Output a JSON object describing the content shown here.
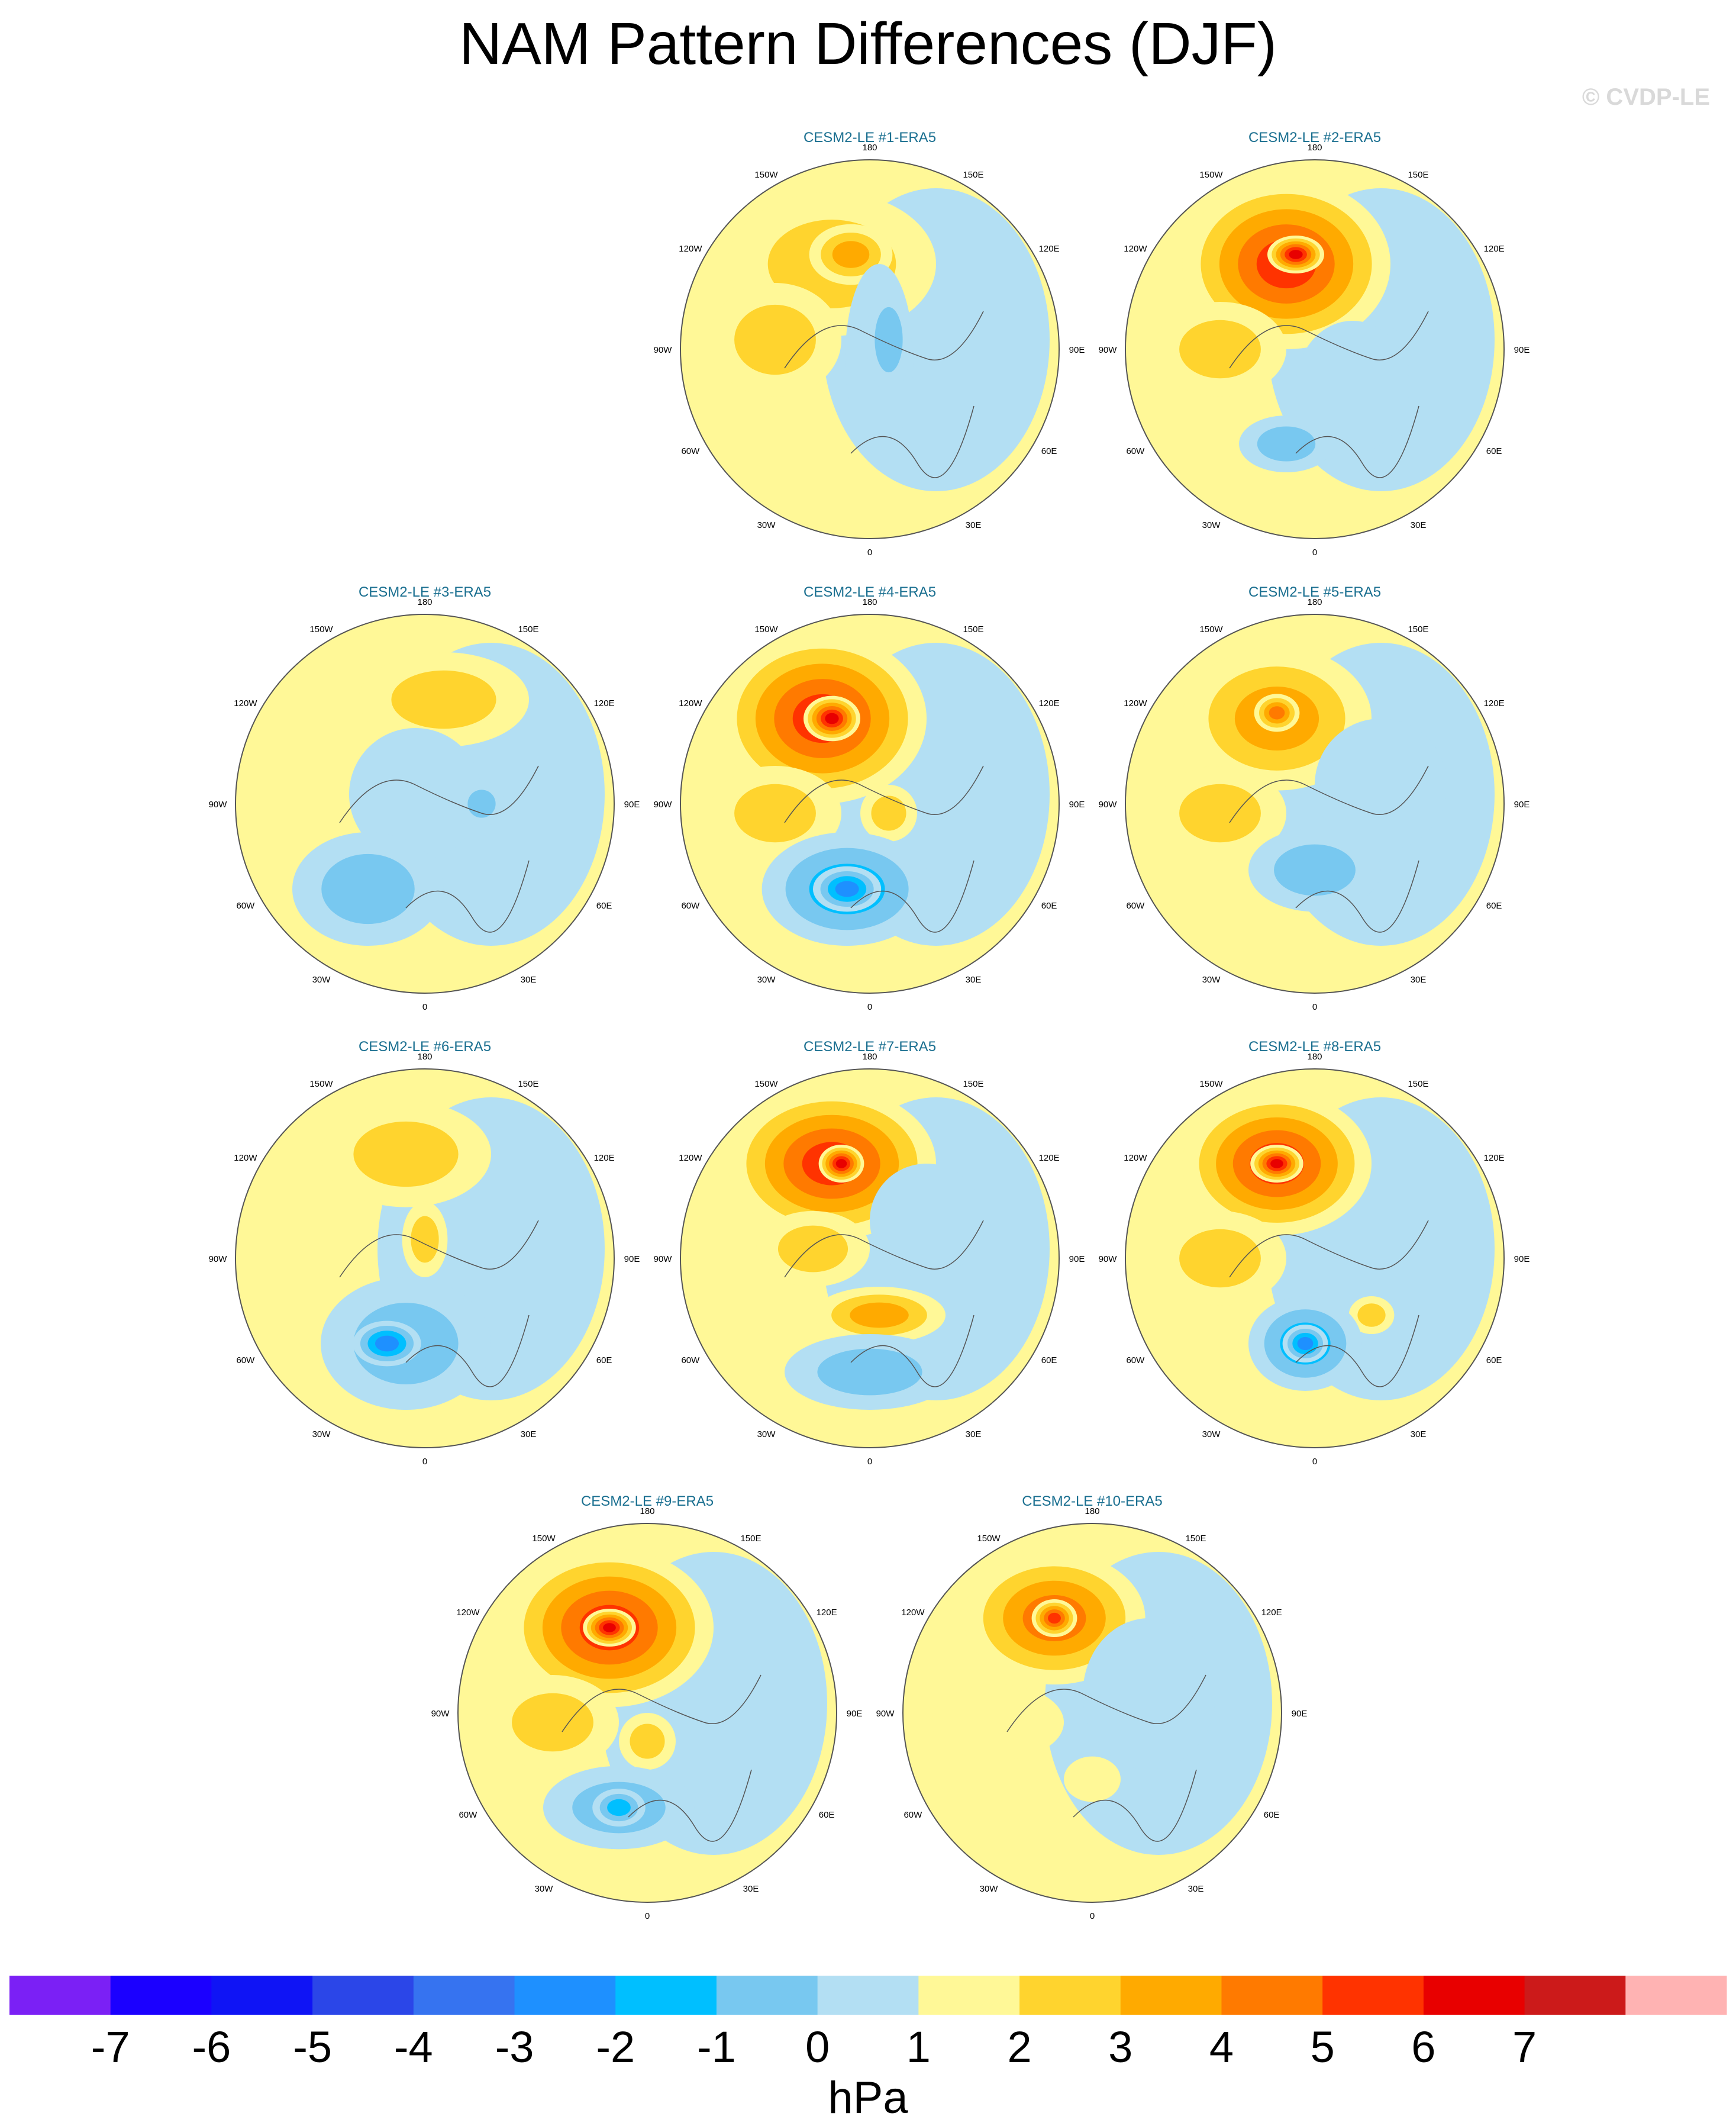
{
  "title": "NAM Pattern Differences (DJF)",
  "credit": "© CVDP-LE",
  "panels": [
    {
      "id": "p1",
      "title": "CESM2-LE #1-ERA5"
    },
    {
      "id": "p2",
      "title": "CESM2-LE #2-ERA5"
    },
    {
      "id": "p3",
      "title": "CESM2-LE #3-ERA5"
    },
    {
      "id": "p4",
      "title": "CESM2-LE #4-ERA5"
    },
    {
      "id": "p5",
      "title": "CESM2-LE #5-ERA5"
    },
    {
      "id": "p6",
      "title": "CESM2-LE #6-ERA5"
    },
    {
      "id": "p7",
      "title": "CESM2-LE #7-ERA5"
    },
    {
      "id": "p8",
      "title": "CESM2-LE #8-ERA5"
    },
    {
      "id": "p9",
      "title": "CESM2-LE #9-ERA5"
    },
    {
      "id": "p10",
      "title": "CESM2-LE #10-ERA5"
    }
  ],
  "longitude_labels": [
    "180",
    "150E",
    "120E",
    "90E",
    "60E",
    "30E",
    "0",
    "30W",
    "60W",
    "90W",
    "120W",
    "150W"
  ],
  "colorbar": {
    "unit": "hPa",
    "tick_labels": [
      "-7",
      "-6",
      "-5",
      "-4",
      "-3",
      "-2",
      "-1",
      "0",
      "1",
      "2",
      "3",
      "4",
      "5",
      "6",
      "7"
    ],
    "colors": [
      "#7b20f5",
      "#1b00ff",
      "#0f14f5",
      "#2b46e8",
      "#3673f0",
      "#1e90ff",
      "#00bfff",
      "#78c8f0",
      "#b3dff3",
      "#fff897",
      "#ffd42e",
      "#ffaa00",
      "#ff7a00",
      "#ff3300",
      "#e80000",
      "#cc1a1a",
      "#ffb3b3"
    ]
  },
  "legend_colors": {
    "neg1": "#b3dff3",
    "neg2": "#78c8f0",
    "neg3": "#00bfff",
    "neg4": "#1e90ff",
    "pos1": "#fff897",
    "pos2": "#ffd42e",
    "pos3": "#ffaa00",
    "pos4": "#ff7a00",
    "pos5": "#ff3300",
    "pos6": "#e80000"
  },
  "chart_data": {
    "type": "map",
    "projection": "polar stereographic (Northern Hemisphere)",
    "variable_unit": "hPa",
    "contour_levels": [
      -7,
      -6,
      -5,
      -4,
      -3,
      -2,
      -1,
      0,
      1,
      2,
      3,
      4,
      5,
      6,
      7
    ],
    "panels": [
      {
        "title": "CESM2-LE #1-ERA5",
        "max_positive": 3,
        "min_negative": -2
      },
      {
        "title": "CESM2-LE #2-ERA5",
        "max_positive": 6,
        "min_negative": -2
      },
      {
        "title": "CESM2-LE #3-ERA5",
        "max_positive": 2,
        "min_negative": -2
      },
      {
        "title": "CESM2-LE #4-ERA5",
        "max_positive": 6,
        "min_negative": -4
      },
      {
        "title": "CESM2-LE #5-ERA5",
        "max_positive": 4,
        "min_negative": -2
      },
      {
        "title": "CESM2-LE #6-ERA5",
        "max_positive": 3,
        "min_negative": -4
      },
      {
        "title": "CESM2-LE #7-ERA5",
        "max_positive": 6,
        "min_negative": -2
      },
      {
        "title": "CESM2-LE #8-ERA5",
        "max_positive": 6,
        "min_negative": -4
      },
      {
        "title": "CESM2-LE #9-ERA5",
        "max_positive": 6,
        "min_negative": -3
      },
      {
        "title": "CESM2-LE #10-ERA5",
        "max_positive": 5,
        "min_negative": -1
      }
    ]
  }
}
